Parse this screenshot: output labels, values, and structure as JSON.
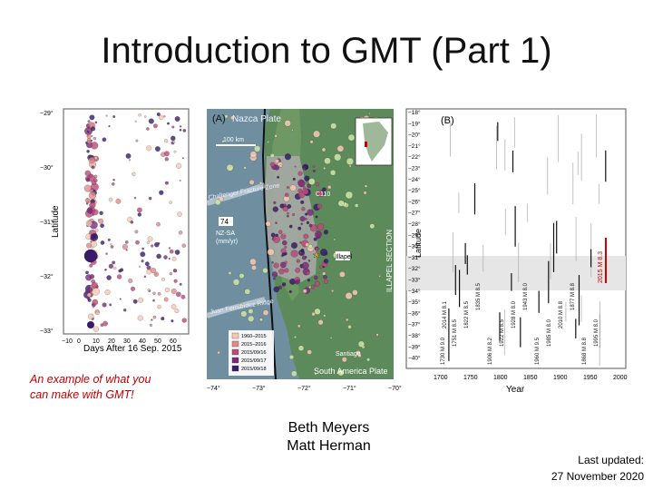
{
  "slide": {
    "title": "Introduction to GMT (Part 1)",
    "caption": "An example of what you can make with GMT!",
    "authors": [
      "Beth Meyers",
      "Matt Herman"
    ],
    "last_updated_label": "Last updated:",
    "last_updated_date": "27 November 2020"
  },
  "figure": {
    "panel_a": {
      "label": "(A)",
      "plate_top": "Nazca Plate",
      "plate_bottom": "South America Plate",
      "scale": "100 km",
      "rate_value": "74",
      "rate_label": "NZ-SA",
      "rate_unit": "(mm/yr)",
      "ridge_north": "Challenger Fracture Zone",
      "ridge_south": "Juan Fernandez Ridge",
      "city_1": "Illapel",
      "city_2": "Santiago",
      "section_label": "ILLAPEL SECTION",
      "x_ticks": [
        "−74°",
        "−73°",
        "−72°",
        "−71°",
        "−70°"
      ],
      "y_ticks": [
        "−29°",
        "−30°",
        "−31°",
        "−32°",
        "−33°"
      ],
      "legend": [
        "1960–2015",
        "2015–2016",
        "2015/09/16",
        "2015/09/17",
        "2015/09/18"
      ],
      "colors": {
        "ocean": "#6f8fa0",
        "land": "#5c8a5a",
        "rupture": "#a9a9a9",
        "colorbar": [
          "#3a1a6b",
          "#7a2a7a",
          "#b94a78",
          "#e08a8a",
          "#f6c8b4"
        ]
      }
    },
    "scatter": {
      "xlabel": "Days After 16 Sep. 2015",
      "ylabel": "Latitude",
      "x_ticks": [
        "−10",
        "0",
        "10",
        "20",
        "30",
        "40",
        "50",
        "60"
      ],
      "y_ticks": [
        "−29°",
        "−30°",
        "−31°",
        "−32°",
        "−33°"
      ]
    },
    "panel_b": {
      "label": "(B)",
      "xlabel": "Year",
      "ylabel": "Latitude",
      "x_ticks": [
        "1700",
        "1750",
        "1800",
        "1850",
        "1900",
        "1950",
        "2000"
      ],
      "y_ticks": [
        "−18°",
        "−19°",
        "−20°",
        "−21°",
        "−22°",
        "−23°",
        "−24°",
        "−25°",
        "−26°",
        "−27°",
        "−28°",
        "−29°",
        "−30°",
        "−31°",
        "−32°",
        "−33°",
        "−34°",
        "−35°",
        "−36°",
        "−37°",
        "−38°",
        "−39°",
        "−40°"
      ],
      "highlight": "2015 M 8.3",
      "events": [
        "1730 M 9.0",
        "1751 M 8.5",
        "1822 M 8.5",
        "1835 M 8.5",
        "1906 M 8.2",
        "1922 M 8.5",
        "1928 M 8.0",
        "1943 M 8.0",
        "1960 M 9.5",
        "1985 M 8.0",
        "2010 M 8.8",
        "1877 M 8.8",
        "1868 M 8.8",
        "1995 M 8.0",
        "2014 M 8.1"
      ]
    }
  }
}
